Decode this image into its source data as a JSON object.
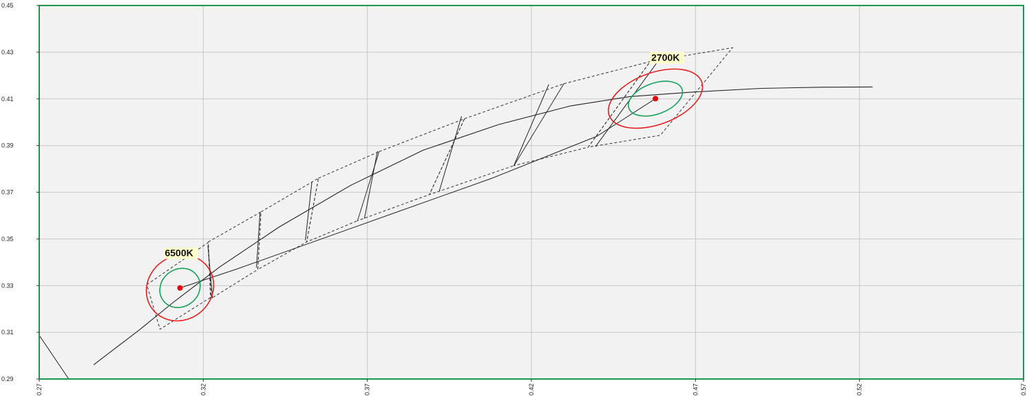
{
  "chart_data": {
    "type": "scatter",
    "title": "",
    "xlabel": "",
    "ylabel": "",
    "xlim": [
      0.27,
      0.57
    ],
    "ylim": [
      0.29,
      0.45
    ],
    "x_ticks": [
      "0.27",
      "0.32",
      "0.37",
      "0.42",
      "0.47",
      "0.52",
      "0.57"
    ],
    "y_ticks": [
      "0.29",
      "0.31",
      "0.33",
      "0.35",
      "0.37",
      "0.39",
      "0.41",
      "0.43",
      "0.45"
    ],
    "grid": true,
    "colors": {
      "plot_bg": "#f2f2f2",
      "frame": "#1a9850",
      "grid": "#c8c8c8",
      "curve": "#222222",
      "ellipse_inner": "#16a05a",
      "ellipse_outer": "#e61e1e",
      "point": "#e60000",
      "label_bg": "#ffffcc"
    },
    "annotations": [
      {
        "text": "6500K",
        "x": 0.3129,
        "y": 0.329
      },
      {
        "text": "2700K",
        "x": 0.4578,
        "y": 0.4101
      }
    ],
    "points": [
      {
        "x": 0.3129,
        "y": 0.329
      },
      {
        "x": 0.4578,
        "y": 0.4101
      }
    ],
    "planckian_locus": {
      "x": [
        0.2866,
        0.3005,
        0.311,
        0.325,
        0.343,
        0.365,
        0.387,
        0.41,
        0.432,
        0.45,
        0.47,
        0.49,
        0.508,
        0.524
      ],
      "y": [
        0.2961,
        0.311,
        0.323,
        0.338,
        0.355,
        0.373,
        0.388,
        0.399,
        0.407,
        0.411,
        0.413,
        0.4145,
        0.415,
        0.4151
      ]
    },
    "reference_line": {
      "x": [
        0.3129,
        0.33,
        0.352,
        0.378,
        0.408,
        0.44,
        0.4578
      ],
      "y": [
        0.329,
        0.337,
        0.348,
        0.361,
        0.376,
        0.394,
        0.4101
      ]
    },
    "cct_lines": [
      {
        "x": [
          0.3214,
          0.3228
        ],
        "y": [
          0.3471,
          0.3246
        ]
      },
      {
        "x": [
          0.3373,
          0.3362
        ],
        "y": [
          0.3616,
          0.3377
        ]
      },
      {
        "x": [
          0.3531,
          0.3511
        ],
        "y": [
          0.3744,
          0.3494
        ]
      },
      {
        "x": [
          0.3731,
          0.3691
        ],
        "y": [
          0.3876,
          0.3587
        ]
      },
      {
        "x": [
          0.3987,
          0.3919
        ],
        "y": [
          0.4025,
          0.3704
        ]
      },
      {
        "x": [
          0.4253,
          0.4147
        ],
        "y": [
          0.4162,
          0.3815
        ]
      },
      {
        "x": [
          0.4593,
          0.4395
        ],
        "y": [
          0.4275,
          0.3895
        ]
      }
    ],
    "quadrangles": [
      {
        "x": [
          0.3028,
          0.3215,
          0.3224,
          0.3068
        ],
        "y": [
          0.3304,
          0.3485,
          0.3251,
          0.3113
        ]
      },
      {
        "x": [
          0.3215,
          0.3376,
          0.3366,
          0.3222
        ],
        "y": [
          0.3487,
          0.3616,
          0.3369,
          0.3243
        ]
      },
      {
        "x": [
          0.3376,
          0.3551,
          0.3515,
          0.3366
        ],
        "y": [
          0.3616,
          0.376,
          0.3487,
          0.3369
        ]
      },
      {
        "x": [
          0.3551,
          0.3736,
          0.367,
          0.3515
        ],
        "y": [
          0.376,
          0.3874,
          0.3578,
          0.3487
        ]
      },
      {
        "x": [
          0.3736,
          0.3996,
          0.3889,
          0.367
        ],
        "y": [
          0.3874,
          0.4015,
          0.369,
          0.3578
        ]
      },
      {
        "x": [
          0.3996,
          0.4299,
          0.4147,
          0.3889
        ],
        "y": [
          0.4015,
          0.4165,
          0.3814,
          0.369
        ]
      },
      {
        "x": [
          0.4299,
          0.4562,
          0.4373,
          0.4147
        ],
        "y": [
          0.4165,
          0.426,
          0.3893,
          0.3814
        ]
      },
      {
        "x": [
          0.4562,
          0.4813,
          0.4593,
          0.4373
        ],
        "y": [
          0.426,
          0.4319,
          0.3944,
          0.3893
        ]
      }
    ],
    "ellipses": [
      {
        "cx": 0.3129,
        "cy": 0.329,
        "rx": 0.0064,
        "ry": 0.008,
        "angle_deg": -38,
        "role": "inner"
      },
      {
        "cx": 0.3129,
        "cy": 0.329,
        "rx": 0.0106,
        "ry": 0.0136,
        "angle_deg": -38,
        "role": "outer"
      },
      {
        "cx": 0.4578,
        "cy": 0.4101,
        "rx": 0.0086,
        "ry": 0.0066,
        "angle_deg": -20,
        "role": "inner"
      },
      {
        "cx": 0.4578,
        "cy": 0.4101,
        "rx": 0.015,
        "ry": 0.0111,
        "angle_deg": -20,
        "role": "outer"
      }
    ],
    "edge_segments": [
      {
        "x": [
          0.27,
          0.279
        ],
        "y": [
          0.3087,
          0.29
        ]
      }
    ]
  }
}
